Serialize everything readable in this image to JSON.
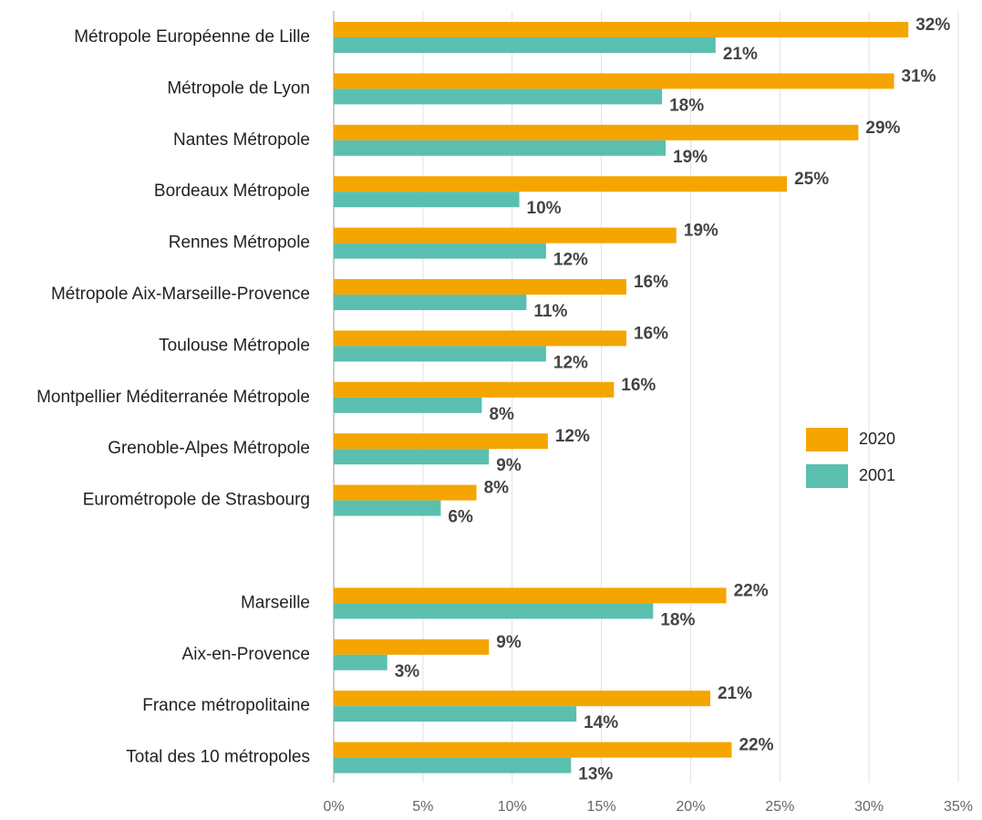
{
  "chart_data": {
    "type": "hbar",
    "categories": [
      "Métropole Européenne de Lille",
      "Métropole de Lyon",
      "Nantes Métropole",
      "Bordeaux Métropole",
      "Rennes Métropole",
      "Métropole Aix-Marseille-Provence",
      "Toulouse Métropole",
      "Montpellier Méditerranée Métropole",
      "Grenoble-Alpes Métropole",
      "Eurométropole de Strasbourg",
      null,
      "Marseille",
      "Aix-en-Provence",
      "France métropolitaine",
      "Total des 10 métropoles"
    ],
    "series": [
      {
        "name": "2020",
        "color": "#f5a500",
        "values": [
          32.2,
          31.4,
          29.4,
          25.4,
          19.2,
          16.4,
          16.4,
          15.7,
          12.0,
          8.0,
          null,
          22.0,
          8.7,
          21.1,
          22.3
        ],
        "value_labels": [
          "32%",
          "31%",
          "29%",
          "25%",
          "19%",
          "16%",
          "16%",
          "16%",
          "12%",
          "8%",
          null,
          "22%",
          "9%",
          "21%",
          "22%"
        ]
      },
      {
        "name": "2001",
        "color": "#5bbfb0",
        "values": [
          21.4,
          18.4,
          18.6,
          10.4,
          11.9,
          10.8,
          11.9,
          8.3,
          8.7,
          6.0,
          null,
          17.9,
          3.0,
          13.6,
          13.3
        ],
        "value_labels": [
          "21%",
          "18%",
          "19%",
          "10%",
          "12%",
          "11%",
          "12%",
          "8%",
          "9%",
          "6%",
          null,
          "18%",
          "3%",
          "14%",
          "13%"
        ]
      }
    ],
    "xlim": [
      0,
      35
    ],
    "xticks": [
      {
        "value": 0,
        "label": "0%"
      },
      {
        "value": 5,
        "label": "5%"
      },
      {
        "value": 10,
        "label": "10%"
      },
      {
        "value": 15,
        "label": "15%"
      },
      {
        "value": 20,
        "label": "20%"
      },
      {
        "value": 25,
        "label": "25%"
      },
      {
        "value": 30,
        "label": "30%"
      },
      {
        "value": 35,
        "label": "35%"
      }
    ],
    "grid": true,
    "legend": "right"
  }
}
